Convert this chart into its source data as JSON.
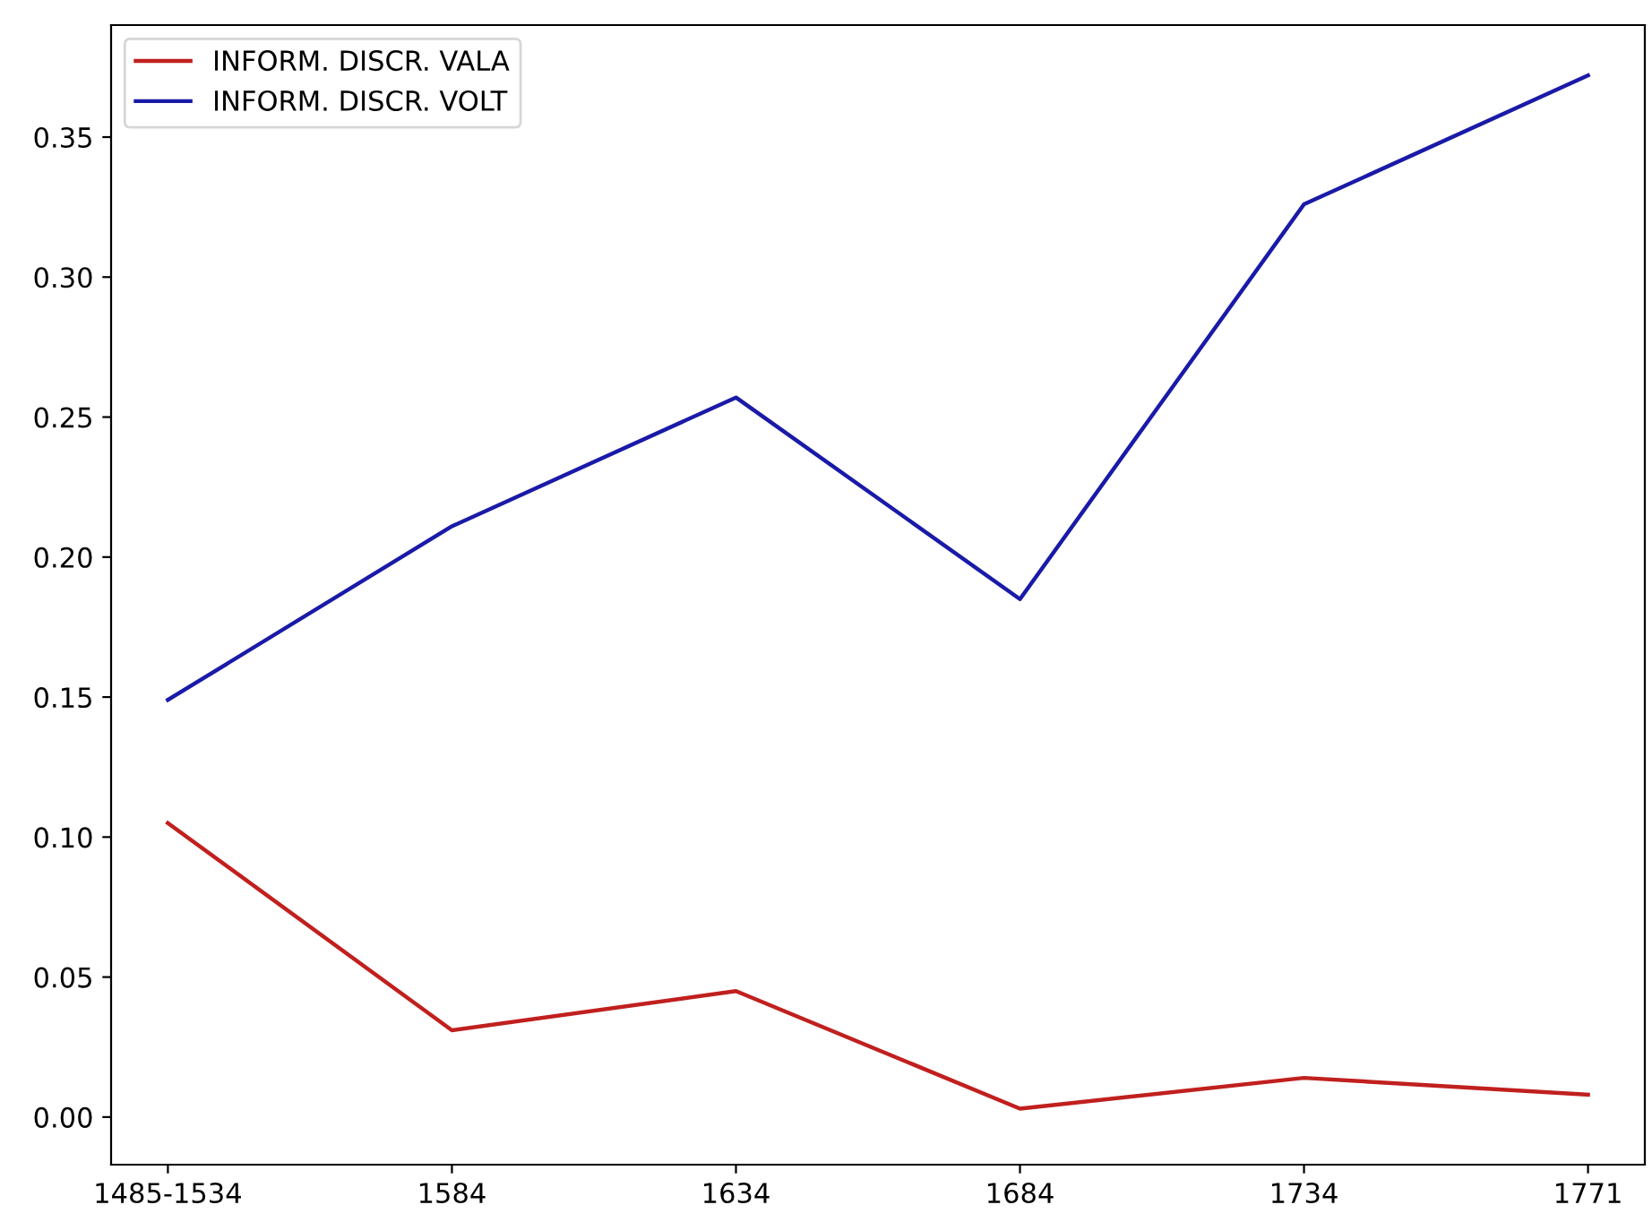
{
  "chart_data": {
    "type": "line",
    "categories": [
      "1485-1534",
      "1584",
      "1634",
      "1684",
      "1734",
      "1771"
    ],
    "series": [
      {
        "name": "INFORM. DISCR. VALA",
        "color": "#c0201e",
        "values": [
          0.105,
          0.031,
          0.045,
          0.003,
          0.014,
          0.008
        ]
      },
      {
        "name": "INFORM. DISCR. VOLT",
        "color": "#1a1aa8",
        "values": [
          0.149,
          0.211,
          0.257,
          0.185,
          0.326,
          0.372
        ]
      }
    ],
    "ylim": [
      -0.017,
      0.39
    ],
    "yticks": [
      {
        "value": 0,
        "label": "0.00"
      },
      {
        "value": 0.05,
        "label": "0.05"
      },
      {
        "value": 0.1,
        "label": "0.10"
      },
      {
        "value": 0.15,
        "label": "0.15"
      },
      {
        "value": 0.2,
        "label": "0.20"
      },
      {
        "value": 0.25,
        "label": "0.25"
      },
      {
        "value": 0.3,
        "label": "0.30"
      },
      {
        "value": 0.35,
        "label": "0.35"
      }
    ],
    "legend": "top left",
    "grid": false,
    "marker": "none",
    "line_style": "solid"
  }
}
